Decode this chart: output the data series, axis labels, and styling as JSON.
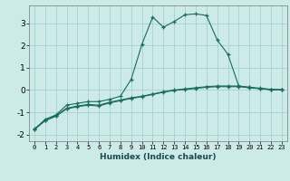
{
  "title": "",
  "xlabel": "Humidex (Indice chaleur)",
  "bg_color": "#cceae8",
  "grid_color": "#aad4d2",
  "line_color": "#1a6b5a",
  "xlim": [
    -0.5,
    23.5
  ],
  "ylim": [
    -2.3,
    3.8
  ],
  "xticks": [
    0,
    1,
    2,
    3,
    4,
    5,
    6,
    7,
    8,
    9,
    10,
    11,
    12,
    13,
    14,
    15,
    16,
    17,
    18,
    19,
    20,
    21,
    22,
    23
  ],
  "yticks": [
    -2,
    -1,
    0,
    1,
    2,
    3
  ],
  "series1_x": [
    0,
    1,
    2,
    3,
    4,
    5,
    6,
    7,
    8,
    9,
    10,
    11,
    12,
    13,
    14,
    15,
    16,
    17,
    18,
    19,
    20,
    21,
    22,
    23
  ],
  "series1_y": [
    -1.75,
    -1.35,
    -1.15,
    -0.82,
    -0.72,
    -0.65,
    -0.68,
    -0.55,
    -0.45,
    -0.35,
    -0.28,
    -0.18,
    -0.08,
    0.0,
    0.05,
    0.1,
    0.15,
    0.18,
    0.18,
    0.18,
    0.12,
    0.08,
    0.03,
    0.02
  ],
  "series2_x": [
    0,
    1,
    2,
    3,
    4,
    5,
    6,
    7,
    8,
    9,
    10,
    11,
    12,
    13,
    14,
    15,
    16,
    17,
    18,
    19,
    20,
    21,
    22,
    23
  ],
  "series2_y": [
    -1.78,
    -1.38,
    -1.18,
    -0.85,
    -0.75,
    -0.68,
    -0.72,
    -0.58,
    -0.48,
    -0.38,
    -0.3,
    -0.2,
    -0.1,
    -0.02,
    0.02,
    0.07,
    0.12,
    0.15,
    0.15,
    0.15,
    0.1,
    0.06,
    0.01,
    0.0
  ],
  "series3_x": [
    0,
    1,
    2,
    3,
    4,
    5,
    6,
    7,
    8,
    9,
    10,
    11,
    12,
    13,
    14,
    15,
    16,
    17,
    18,
    19,
    20,
    21,
    22,
    23
  ],
  "series3_y": [
    -1.78,
    -1.32,
    -1.12,
    -0.68,
    -0.6,
    -0.52,
    -0.52,
    -0.42,
    -0.28,
    0.48,
    2.05,
    3.28,
    2.82,
    3.08,
    3.38,
    3.42,
    3.35,
    2.25,
    1.6,
    0.18,
    0.12,
    0.06,
    0.02,
    0.0
  ]
}
